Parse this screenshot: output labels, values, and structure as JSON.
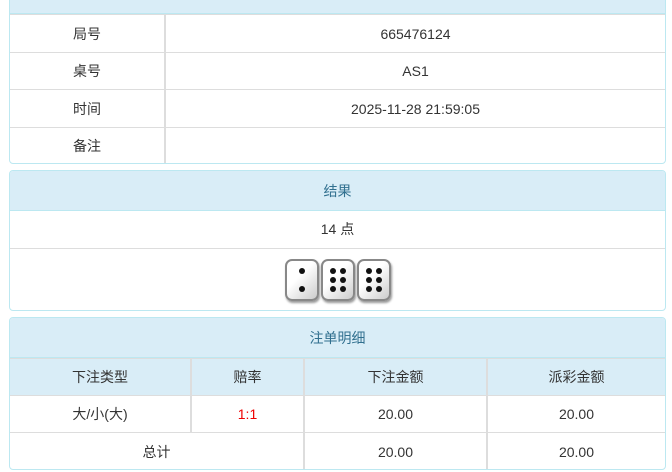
{
  "info": {
    "rows": [
      {
        "label": "局号",
        "value": "665476124"
      },
      {
        "label": "桌号",
        "value": "AS1"
      },
      {
        "label": "时间",
        "value": "2025-11-28 21:59:05"
      },
      {
        "label": "备注",
        "value": ""
      }
    ]
  },
  "result": {
    "title": "结果",
    "points": "14 点",
    "dice": [
      2,
      6,
      6
    ]
  },
  "bets": {
    "title": "注单明细",
    "headers": [
      "下注类型",
      "赔率",
      "下注金额",
      "派彩金额"
    ],
    "rows": [
      {
        "type": "大/小(大)",
        "odds": "1:1",
        "amount": "20.00",
        "payout": "20.00"
      }
    ],
    "total": {
      "label": "总计",
      "amount": "20.00",
      "payout": "20.00"
    },
    "odds_color": "#e00000"
  }
}
